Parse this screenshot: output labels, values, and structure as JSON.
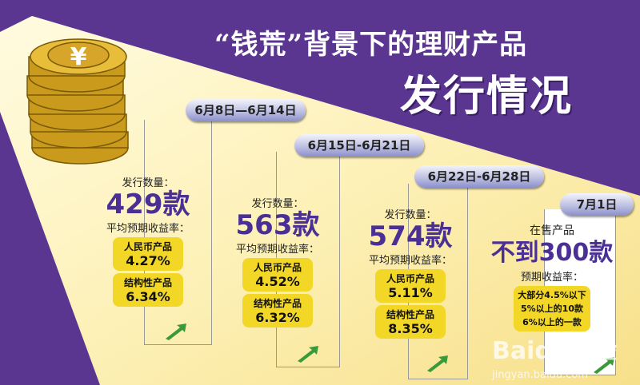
{
  "title": {
    "line1": "“钱荒”背景下的理财产品",
    "line2": "发行情况"
  },
  "periods": [
    {
      "date": "6月8日—6月14日",
      "count_label": "发行数量：",
      "count": "429款",
      "rate_label": "平均预期收益率：",
      "products": [
        {
          "name": "人民币产品",
          "rate": "4.27%"
        },
        {
          "name": "结构性产品",
          "rate": "6.34%"
        }
      ]
    },
    {
      "date": "6月15日-6月21日",
      "count_label": "发行数量：",
      "count": "563款",
      "rate_label": "平均预期收益率：",
      "products": [
        {
          "name": "人民币产品",
          "rate": "4.52%"
        },
        {
          "name": "结构性产品",
          "rate": "6.32%"
        }
      ]
    },
    {
      "date": "6月22日-6月28日",
      "count_label": "发行数量：",
      "count": "574款",
      "rate_label": "平均预期收益率：",
      "products": [
        {
          "name": "人民币产品",
          "rate": "5.11%"
        },
        {
          "name": "结构性产品",
          "rate": "8.35%"
        }
      ]
    }
  ],
  "july": {
    "date": "7月1日",
    "label": "在售产品",
    "count": "不到300款",
    "rate_label": "预期收益率：",
    "notes": [
      "大部分4.5%以下",
      "5%以上的10款",
      "6%以上的一款"
    ]
  },
  "coin_symbol": "¥",
  "watermark": {
    "logo": "Baidu经验",
    "url": "jingyan.baidu.com"
  },
  "colors": {
    "purple": "#5a3690",
    "accent_text": "#4a2f94",
    "yellow_box": "#f3d726"
  }
}
